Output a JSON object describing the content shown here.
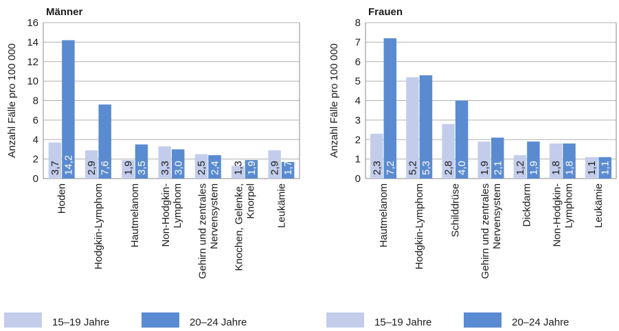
{
  "colors": {
    "series_15_19": "#c3cdeb",
    "series_20_24": "#5a8bd0",
    "axis": "#888888",
    "grid": "#b0b0b0",
    "text": "#1a1a1a",
    "label_on_bar": "#ffffff"
  },
  "chart_data": [
    {
      "type": "bar",
      "title": "Männer",
      "ylabel": "Anzahl Fälle pro 100 000",
      "ylim": [
        0,
        16
      ],
      "yticks": [
        "0",
        "2",
        "4",
        "6",
        "8",
        "10",
        "12",
        "14",
        "16"
      ],
      "categories": [
        [
          "Hoden"
        ],
        [
          "Hodgkin-Lymphom"
        ],
        [
          "Hautmelanom"
        ],
        [
          "Non-Hodgkin-",
          "Lymphom"
        ],
        [
          "Gehirn und zentrales",
          "Nervensystem"
        ],
        [
          "Knochen, Gelenke,",
          "Knorpel"
        ],
        [
          "Leukämie"
        ]
      ],
      "series": [
        {
          "name": "15–19 Jahre",
          "values": [
            3.7,
            2.9,
            1.9,
            3.3,
            2.5,
            1.3,
            2.9
          ],
          "labels": [
            "3,7",
            "2,9",
            "1,9",
            "3,3",
            "2,5",
            "1,3",
            "2,9"
          ]
        },
        {
          "name": "20–24 Jahre",
          "values": [
            14.2,
            7.6,
            3.5,
            3.0,
            2.4,
            1.9,
            1.7
          ],
          "labels": [
            "14,2",
            "7,6",
            "3,5",
            "3,0",
            "2,4",
            "1,9",
            "1,7"
          ]
        }
      ],
      "grid": true,
      "legend": "bottom"
    },
    {
      "type": "bar",
      "title": "Frauen",
      "ylabel": "Anzahl Fälle pro 100 000",
      "ylim": [
        0,
        8
      ],
      "yticks": [
        "0",
        "1",
        "2",
        "3",
        "4",
        "5",
        "6",
        "7",
        "8"
      ],
      "categories": [
        [
          "Hautmelanom"
        ],
        [
          "Hodgkin-Lymphom"
        ],
        [
          "Schilddrüse"
        ],
        [
          "Gehirn und zentrales",
          "Nervensystem"
        ],
        [
          "Dickdarm"
        ],
        [
          "Non-Hodgkin-",
          "Lymphom"
        ],
        [
          "Leukämie"
        ]
      ],
      "series": [
        {
          "name": "15–19 Jahre",
          "values": [
            2.3,
            5.2,
            2.8,
            1.9,
            1.2,
            1.8,
            1.1
          ],
          "labels": [
            "2,3",
            "5,2",
            "2,8",
            "1,9",
            "1,2",
            "1,8",
            "1,1"
          ]
        },
        {
          "name": "20–24 Jahre",
          "values": [
            7.2,
            5.3,
            4.0,
            2.1,
            1.9,
            1.8,
            1.1
          ],
          "labels": [
            "7,2",
            "5,3",
            "4,0",
            "2,1",
            "1,9",
            "1,8",
            "1,1"
          ]
        }
      ],
      "grid": true,
      "legend": "bottom"
    }
  ]
}
